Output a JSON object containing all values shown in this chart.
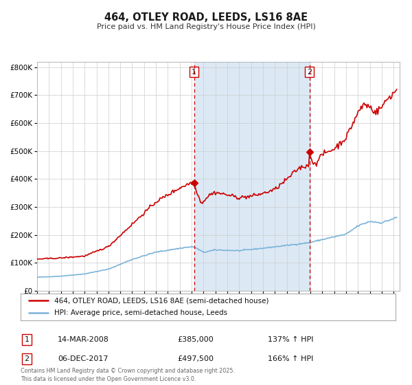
{
  "title": "464, OTLEY ROAD, LEEDS, LS16 8AE",
  "subtitle": "Price paid vs. HM Land Registry's House Price Index (HPI)",
  "legend_line1": "464, OTLEY ROAD, LEEDS, LS16 8AE (semi-detached house)",
  "legend_line2": "HPI: Average price, semi-detached house, Leeds",
  "footnote": "Contains HM Land Registry data © Crown copyright and database right 2025.\nThis data is licensed under the Open Government Licence v3.0.",
  "sale1_date": "14-MAR-2008",
  "sale1_price": "£385,000",
  "sale1_hpi": "137% ↑ HPI",
  "sale2_date": "06-DEC-2017",
  "sale2_price": "£497,500",
  "sale2_hpi": "166% ↑ HPI",
  "hpi_color": "#7ab3d8",
  "property_color": "#cc0000",
  "sale_marker_color": "#cc0000",
  "vline_color": "#cc0000",
  "shade_color": "#dce9f5",
  "background_color": "#ffffff",
  "plot_bg_color": "#ffffff",
  "grid_color": "#cccccc",
  "ylim": [
    0,
    820000
  ],
  "sale1_x": 2008.2,
  "sale1_y": 385000,
  "sale2_x": 2017.92,
  "sale2_y": 497500,
  "shade_x1": 2008.2,
  "shade_x2": 2017.92,
  "xmin": 1995,
  "xmax": 2025.5
}
